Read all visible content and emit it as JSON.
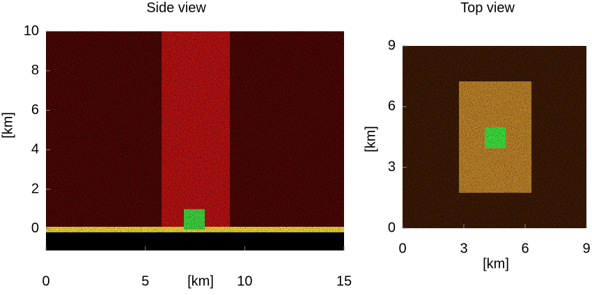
{
  "chart_data": [
    {
      "type": "region",
      "title": "Side view",
      "xlabel": "[km]",
      "ylabel": "[km]",
      "xlim": [
        0,
        15
      ],
      "ylim": [
        -1.1,
        10
      ],
      "xticks": [
        0,
        5,
        10,
        15
      ],
      "yticks": [
        0,
        2,
        4,
        6,
        8,
        10
      ],
      "regions": [
        {
          "x": [
            0,
            15
          ],
          "y": [
            -1.1,
            10
          ],
          "color": "#000000"
        },
        {
          "x": [
            0,
            15
          ],
          "y": [
            0,
            10
          ],
          "color": "#4a0a0a"
        },
        {
          "x": [
            5.82,
            9.25
          ],
          "y": [
            -0.1,
            10
          ],
          "color": "#b01818"
        },
        {
          "x": [
            0,
            15
          ],
          "y": [
            -0.18,
            0.1
          ],
          "color": "#e8d030"
        },
        {
          "x": [
            6.94,
            7.99
          ],
          "y": [
            -0.04,
            0.99
          ],
          "color": "#3fcf3f"
        }
      ]
    },
    {
      "type": "region",
      "title": "Top view",
      "xlabel": "[km]",
      "ylabel": "[km]",
      "xlim": [
        0,
        9
      ],
      "ylim": [
        0,
        9
      ],
      "xticks": [
        0,
        3,
        6,
        9
      ],
      "yticks": [
        0,
        3,
        6,
        9
      ],
      "regions": [
        {
          "x": [
            0,
            9
          ],
          "y": [
            0,
            9
          ],
          "color": "#3a1a0a"
        },
        {
          "x": [
            2.76,
            6.31
          ],
          "y": [
            1.75,
            7.25
          ],
          "color": "#b8802a"
        },
        {
          "x": [
            4.03,
            5.05
          ],
          "y": [
            3.95,
            4.98
          ],
          "color": "#3ddc3d"
        }
      ]
    }
  ]
}
